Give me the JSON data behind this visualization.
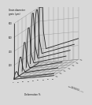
{
  "title": "Grain diameter\ngrain (µm)",
  "xlabel": "Deformation %",
  "temp_axis_label": "Annealing\ntemperature (°C)",
  "temperatures": [
    400,
    450,
    500,
    550,
    600,
    650,
    700
  ],
  "deform_points": [
    0,
    2,
    4,
    6,
    8,
    10,
    15,
    20,
    30,
    40,
    50,
    60,
    70,
    80
  ],
  "grain_max": 800,
  "grain_ticks": [
    0,
    200,
    400,
    600,
    800
  ],
  "deform_ticks": [
    0,
    10,
    20,
    30,
    40,
    50,
    60,
    70,
    80
  ],
  "background_color": "#d8d8d8",
  "line_color": "#222222",
  "grid_color": "#999999",
  "base_color": "#bbbbbb"
}
